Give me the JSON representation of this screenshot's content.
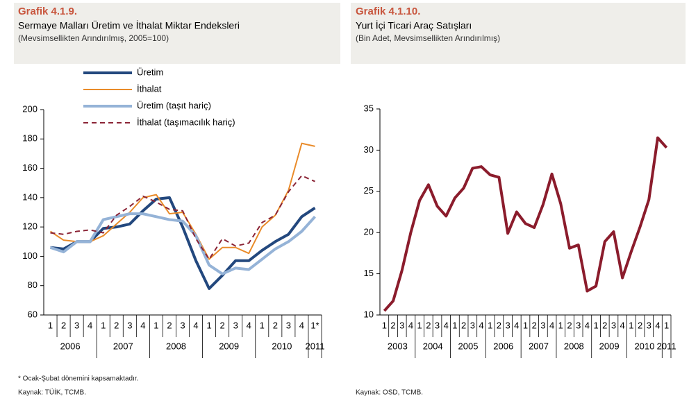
{
  "chart_data": [
    {
      "type": "line",
      "title": "Grafik 4.1.9.",
      "subtitle": "Sermaye Malları Üretim ve İthalat Miktar Endeksleri",
      "note": "(Mevsimsellikten Arındırılmış, 2005=100)",
      "categories": [
        "1",
        "2",
        "3",
        "4",
        "1",
        "2",
        "3",
        "4",
        "1",
        "2",
        "3",
        "4",
        "1",
        "2",
        "3",
        "4",
        "1",
        "2",
        "3",
        "4",
        "1*"
      ],
      "years": [
        "2006",
        "2007",
        "2008",
        "2009",
        "2010",
        "2011"
      ],
      "ylim": [
        60,
        200
      ],
      "yticks": [
        60,
        80,
        100,
        120,
        140,
        160,
        180,
        200
      ],
      "series": [
        {
          "name": "Üretim",
          "color": "#23487e",
          "width": 4,
          "dashed": false,
          "values": [
            106,
            105,
            110,
            110,
            119,
            120,
            122,
            131,
            139,
            140,
            120,
            97,
            78,
            87,
            97,
            97,
            104,
            110,
            115,
            127,
            133
          ]
        },
        {
          "name": "İthalat",
          "color": "#e98b2a",
          "width": 2,
          "dashed": false,
          "values": [
            117,
            111,
            110,
            110,
            114,
            122,
            130,
            140,
            142,
            129,
            130,
            115,
            98,
            106,
            106,
            102,
            120,
            128,
            145,
            177,
            175
          ]
        },
        {
          "name": "Üretim (taşıt hariç)",
          "color": "#95b3d7",
          "width": 4,
          "dashed": false,
          "values": [
            106,
            103,
            110,
            110,
            125,
            127,
            129,
            129,
            127,
            125,
            124,
            114,
            94,
            88,
            92,
            91,
            98,
            105,
            110,
            117,
            127
          ]
        },
        {
          "name": "İthalat (taşımacılık hariç)",
          "color": "#8b2436",
          "width": 2,
          "dashed": true,
          "values": [
            116,
            115,
            117,
            118,
            116,
            128,
            134,
            141,
            137,
            132,
            131,
            112,
            98,
            112,
            107,
            109,
            123,
            128,
            144,
            155,
            151
          ]
        }
      ],
      "footnotes": [
        "* Ocak-Şubat dönemini kapsamaktadır.",
        "Kaynak: TÜİK, TCMB."
      ]
    },
    {
      "type": "line",
      "title": "Grafik 4.1.10.",
      "subtitle": "Yurt İçi Ticari Araç Satışları",
      "note": "(Bin Adet, Mevsimsellikten Arındırılmış)",
      "categories": [
        "1",
        "2",
        "3",
        "4",
        "1",
        "2",
        "3",
        "4",
        "1",
        "2",
        "3",
        "4",
        "1",
        "2",
        "3",
        "4",
        "1",
        "2",
        "3",
        "4",
        "1",
        "2",
        "3",
        "4",
        "1",
        "2",
        "3",
        "4",
        "1",
        "2",
        "3",
        "4",
        "1"
      ],
      "years": [
        "2003",
        "2004",
        "2005",
        "2006",
        "2007",
        "2008",
        "2009",
        "2010",
        "2011"
      ],
      "ylim": [
        10,
        35
      ],
      "yticks": [
        10,
        15,
        20,
        25,
        30,
        35
      ],
      "series": [
        {
          "color": "#8b1c2c",
          "width": 4,
          "dashed": false,
          "values": [
            10.5,
            11.7,
            15.4,
            20,
            23.9,
            25.8,
            23.2,
            22,
            24.2,
            25.4,
            27.8,
            28,
            27,
            26.7,
            19.9,
            22.5,
            21.1,
            20.6,
            23.4,
            27.1,
            23.5,
            18.1,
            18.5,
            12.9,
            13.5,
            18.9,
            20.1,
            14.5,
            17.7,
            20.7,
            24,
            31.5,
            30.3
          ]
        }
      ],
      "footnotes": [
        "Kaynak: OSD, TCMB."
      ]
    }
  ]
}
